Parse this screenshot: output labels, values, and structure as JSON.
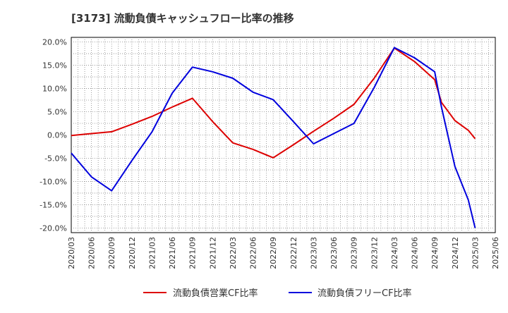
{
  "chart_data": {
    "type": "line",
    "title": "[3173]  流動負債キャッシュフロー比率の推移",
    "x": [
      "2020/03",
      "2020/06",
      "2020/09",
      "2020/12",
      "2021/03",
      "2021/06",
      "2021/09",
      "2021/12",
      "2022/03",
      "2022/06",
      "2022/09",
      "2022/12",
      "2023/03",
      "2023/06",
      "2023/09",
      "2023/12",
      "2024/03",
      "2024/06",
      "2024/09",
      "2024/12",
      "2025/03",
      "2025/06"
    ],
    "series": [
      {
        "name": "流動負債営業CF比率",
        "color": "#dd0000",
        "x": [
          "2020/03",
          "2020/06",
          "2020/09",
          "2020/12",
          "2021/03",
          "2021/06",
          "2021/09",
          "2021/12",
          "2022/03",
          "2022/06",
          "2022/09",
          "2022/12",
          "2023/03",
          "2023/06",
          "2023/09",
          "2023/12",
          "2024/03",
          "2024/06",
          "2024/09",
          "2024/10",
          "2024/12",
          "2025/02",
          "2025/03"
        ],
        "values": [
          -0.1,
          0.3,
          0.7,
          2.3,
          4.0,
          6.0,
          7.9,
          2.9,
          -1.7,
          -3.1,
          -4.9,
          -2.1,
          0.8,
          3.6,
          6.6,
          12.2,
          18.7,
          15.8,
          11.9,
          7.0,
          3.1,
          1.0,
          -0.8
        ]
      },
      {
        "name": "流動負債フリーCF比率",
        "color": "#0000dd",
        "x": [
          "2020/03",
          "2020/06",
          "2020/09",
          "2020/12",
          "2021/03",
          "2021/06",
          "2021/09",
          "2021/12",
          "2022/03",
          "2022/06",
          "2022/09",
          "2022/12",
          "2023/03",
          "2023/06",
          "2023/09",
          "2023/12",
          "2024/03",
          "2024/06",
          "2024/09",
          "2024/10",
          "2024/12",
          "2025/02",
          "2025/03"
        ],
        "values": [
          -3.9,
          -9.0,
          -12.0,
          -5.5,
          0.7,
          9.0,
          14.6,
          13.6,
          12.2,
          9.2,
          7.6,
          2.9,
          -1.9,
          0.3,
          2.5,
          10.2,
          18.8,
          16.6,
          13.6,
          6.0,
          -6.8,
          -14.0,
          -20.0
        ]
      }
    ],
    "ylim": [
      -21,
      21
    ],
    "yticks": [
      -20,
      -15,
      -10,
      -5,
      0,
      5,
      10,
      15,
      20
    ],
    "ytick_labels": [
      "-20.0%",
      "-15.0%",
      "-10.0%",
      "-5.0%",
      "0.0%",
      "5.0%",
      "10.0%",
      "15.0%",
      "20.0%"
    ],
    "grid": true,
    "legend_position": "bottom"
  }
}
